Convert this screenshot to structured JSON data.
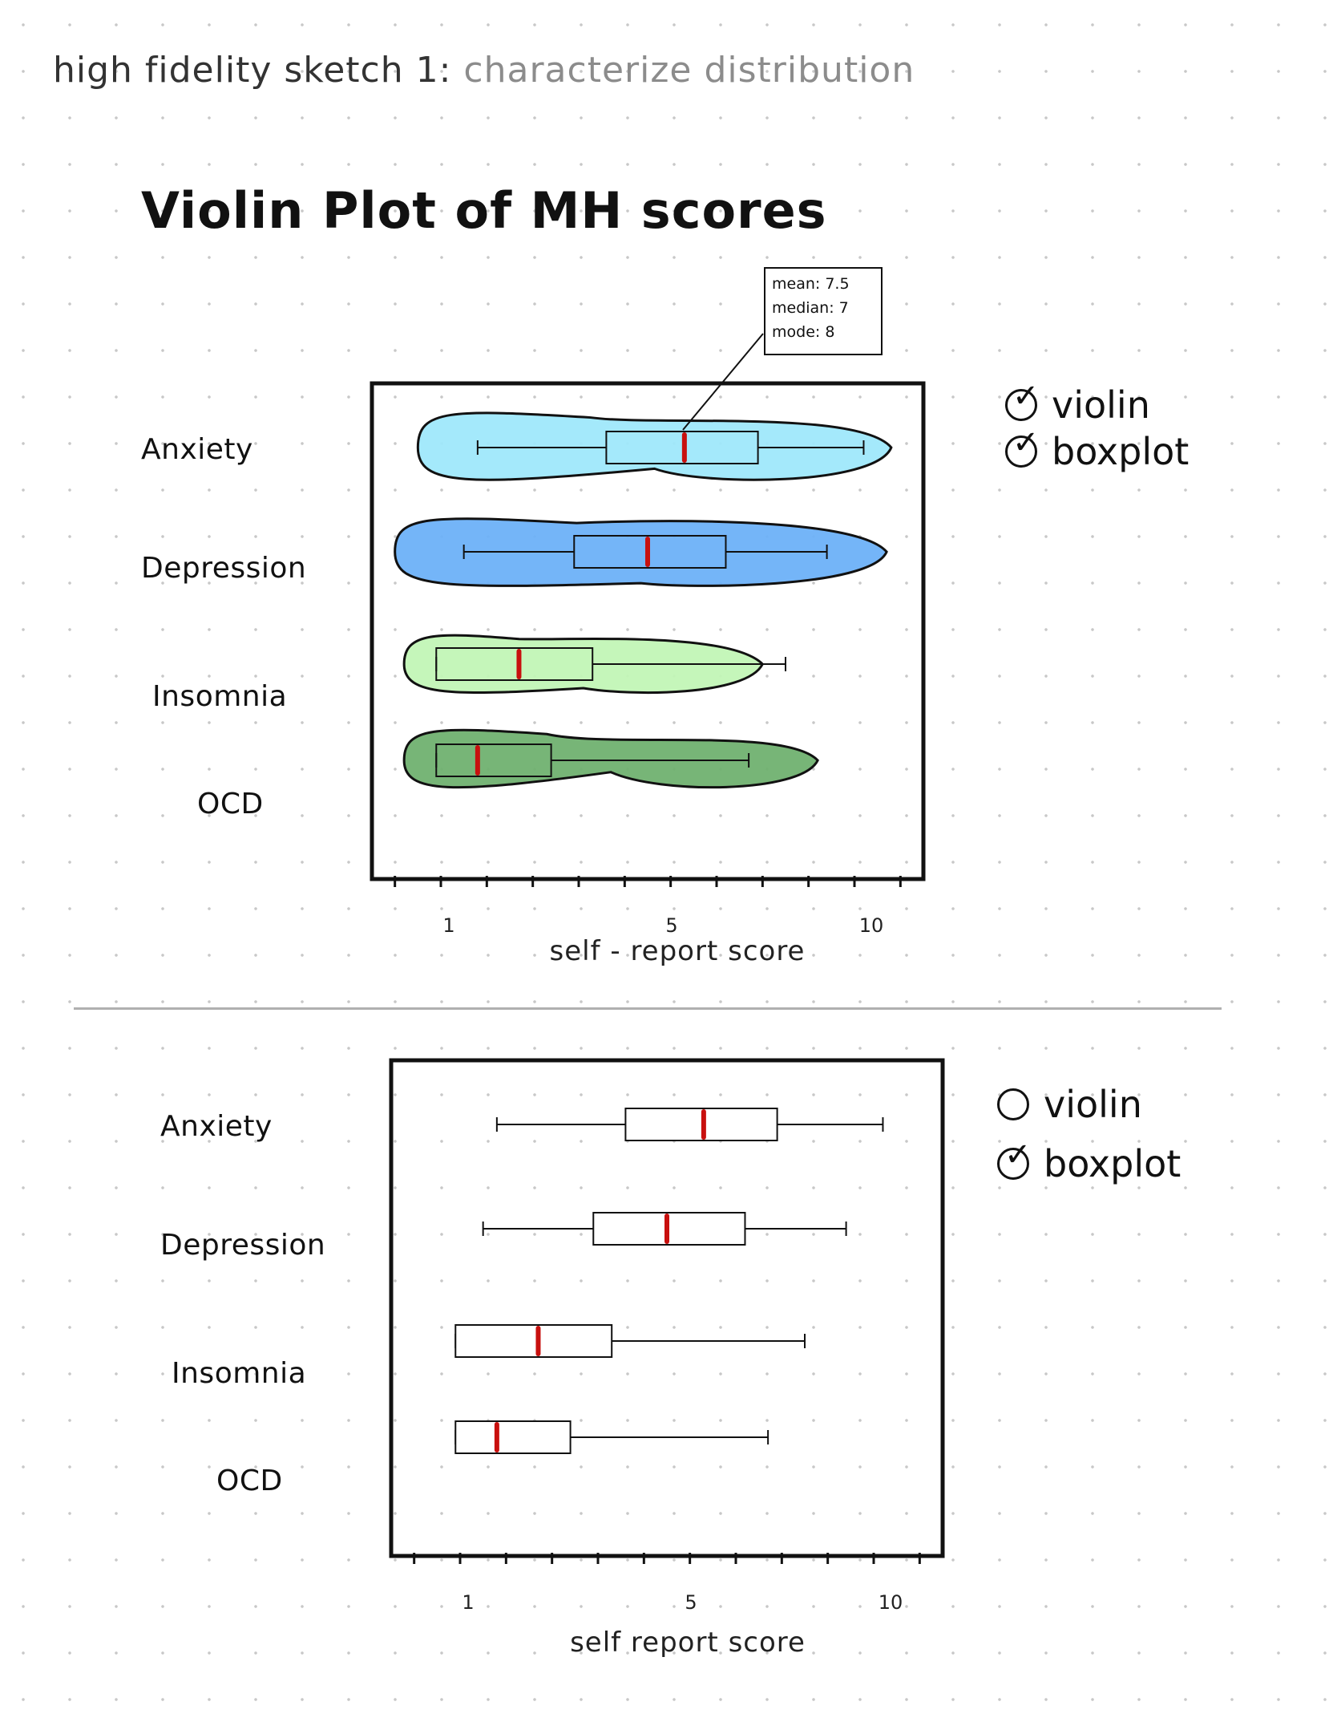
{
  "heading": {
    "main": "high fidelity sketch 1:",
    "sub": "characterize distribution"
  },
  "charts": [
    {
      "mode": "violin",
      "legend": {
        "violin": {
          "label": "violin",
          "checked": true
        },
        "boxplot": {
          "label": "boxplot",
          "checked": true
        }
      },
      "tooltip": {
        "mean": "mean: 7.5",
        "median": "median: 7",
        "mode": "mode: 8"
      },
      "xticks": [
        "1",
        "5",
        "10"
      ],
      "xlabel": "self - report score"
    },
    {
      "mode": "boxplot",
      "legend": {
        "violin": {
          "label": "violin",
          "checked": false
        },
        "boxplot": {
          "label": "boxplot",
          "checked": true
        }
      },
      "xticks": [
        "1",
        "5",
        "10"
      ],
      "xlabel": "self report score"
    }
  ],
  "chart_data": {
    "type": "boxplot",
    "title": "Violin Plot of MH scores",
    "xlabel": "self - report score",
    "xlim": [
      -0.5,
      11.5
    ],
    "xticks": [
      1,
      5,
      10
    ],
    "categories": [
      "Anxiety",
      "Depression",
      "Insomnia",
      "OCD"
    ],
    "series": [
      {
        "name": "Anxiety",
        "whisker_low": 1.8,
        "q1": 4.6,
        "median": 6.3,
        "q3": 7.9,
        "whisker_high": 10.2,
        "violin_range": [
          0.5,
          10.8
        ],
        "color": "#9fe8fb"
      },
      {
        "name": "Depression",
        "whisker_low": 1.5,
        "q1": 3.9,
        "median": 5.5,
        "q3": 7.2,
        "whisker_high": 9.4,
        "violin_range": [
          0.0,
          10.7
        ],
        "color": "#6db1f8"
      },
      {
        "name": "Insomnia",
        "whisker_low": 0.9,
        "q1": 0.9,
        "median": 2.7,
        "q3": 4.3,
        "whisker_high": 8.5,
        "violin_range": [
          0.2,
          8.0
        ],
        "color": "#c2f6b6"
      },
      {
        "name": "OCD",
        "whisker_low": 0.9,
        "q1": 0.9,
        "median": 1.8,
        "q3": 3.4,
        "whisker_high": 7.7,
        "violin_range": [
          0.2,
          9.2
        ],
        "color": "#70b170"
      }
    ],
    "median_color": "#c8100e"
  }
}
